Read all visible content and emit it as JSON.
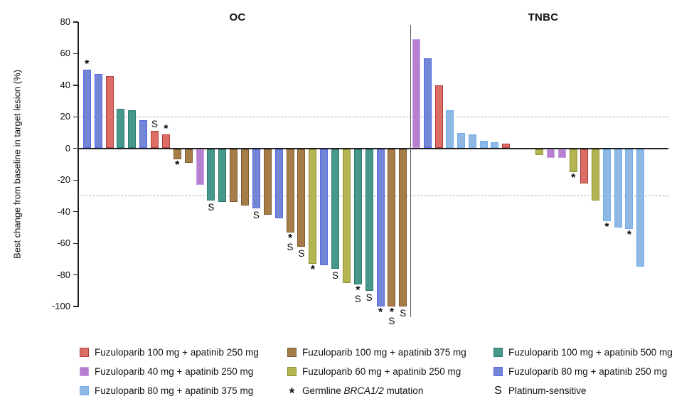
{
  "chart_data": {
    "type": "bar",
    "subtype": "waterfall",
    "ylabel": "Best change from baseline in target lesion (%)",
    "ylim": [
      -100,
      80
    ],
    "yticks": [
      80,
      60,
      40,
      20,
      0,
      -20,
      -40,
      -60,
      -80,
      -100
    ],
    "reference_lines_y": [
      20,
      -30
    ],
    "grid": false,
    "legend_position": "bottom",
    "groups": {
      "f100a250": {
        "label": "Fuzuloparib 100 mg + apatinib 250 mg",
        "fill": "#DC6E67",
        "border": "#B23E39"
      },
      "f100a375": {
        "label": "Fuzuloparib 100 mg + apatinib 375 mg",
        "fill": "#A67C49",
        "border": "#7E5B2F"
      },
      "f100a500": {
        "label": "Fuzuloparib 100 mg + apatinib 500 mg",
        "fill": "#47988C",
        "border": "#2E7A6D"
      },
      "f40a250": {
        "label": "Fuzuloparib 40 mg + apatinib 250 mg",
        "fill": "#B67FD0",
        "border": "#CBA2E6"
      },
      "f60a250": {
        "label": "Fuzuloparib 60 mg + apatinib 250 mg",
        "fill": "#B5B452",
        "border": "#90902E"
      },
      "f80a250": {
        "label": "Fuzuloparib 80 mg + apatinib 250 mg",
        "fill": "#7386D5",
        "border": "#5566E6"
      },
      "f80a375": {
        "label": "Fuzuloparib 80 mg + apatinib 375 mg",
        "fill": "#8FB9E4",
        "border": "#6FAFF0"
      }
    },
    "flag_meanings": {
      "star": "Germline BRCA1/2 mutation",
      "S": "Platinum-sensitive"
    },
    "panels": [
      {
        "title": "OC",
        "bars": [
          {
            "value": 50,
            "group": "f80a250",
            "flags": [
              "star"
            ]
          },
          {
            "value": 47,
            "group": "f80a250",
            "flags": []
          },
          {
            "value": 46,
            "group": "f100a250",
            "flags": []
          },
          {
            "value": 25,
            "group": "f100a500",
            "flags": []
          },
          {
            "value": 24,
            "group": "f100a500",
            "flags": []
          },
          {
            "value": 18,
            "group": "f80a250",
            "flags": []
          },
          {
            "value": 11,
            "group": "f100a250",
            "flags": [
              "S"
            ]
          },
          {
            "value": 9,
            "group": "f100a250",
            "flags": [
              "star"
            ]
          },
          {
            "value": -7,
            "group": "f100a375",
            "flags": [
              "star"
            ]
          },
          {
            "value": -9,
            "group": "f100a375",
            "flags": []
          },
          {
            "value": -23,
            "group": "f40a250",
            "flags": []
          },
          {
            "value": -33,
            "group": "f100a500",
            "flags": [
              "S"
            ]
          },
          {
            "value": -34,
            "group": "f100a500",
            "flags": []
          },
          {
            "value": -34,
            "group": "f100a375",
            "flags": []
          },
          {
            "value": -36,
            "group": "f100a375",
            "flags": []
          },
          {
            "value": -38,
            "group": "f80a250",
            "flags": [
              "S"
            ]
          },
          {
            "value": -42,
            "group": "f100a375",
            "flags": []
          },
          {
            "value": -44,
            "group": "f80a250",
            "flags": []
          },
          {
            "value": -53,
            "group": "f100a375",
            "flags": [
              "star",
              "S"
            ]
          },
          {
            "value": -62,
            "group": "f100a375",
            "flags": [
              "S"
            ]
          },
          {
            "value": -73,
            "group": "f60a250",
            "flags": [
              "star"
            ]
          },
          {
            "value": -74,
            "group": "f80a250",
            "flags": []
          },
          {
            "value": -76,
            "group": "f100a500",
            "flags": [
              "S"
            ]
          },
          {
            "value": -85,
            "group": "f60a250",
            "flags": []
          },
          {
            "value": -86,
            "group": "f100a500",
            "flags": [
              "star",
              "S"
            ]
          },
          {
            "value": -90,
            "group": "f100a500",
            "flags": [
              "S"
            ]
          },
          {
            "value": -100,
            "group": "f80a250",
            "flags": [
              "star"
            ]
          },
          {
            "value": -100,
            "group": "f100a375",
            "flags": [
              "star",
              "S"
            ]
          },
          {
            "value": -100,
            "group": "f100a375",
            "flags": [
              "S"
            ]
          }
        ]
      },
      {
        "title": "TNBC",
        "bars": [
          {
            "value": 69,
            "group": "f40a250",
            "slot": 0,
            "flags": []
          },
          {
            "value": 57,
            "group": "f80a250",
            "slot": 1,
            "flags": []
          },
          {
            "value": 40,
            "group": "f100a250",
            "slot": 2,
            "flags": []
          },
          {
            "value": 24,
            "group": "f80a375",
            "slot": 3,
            "flags": []
          },
          {
            "value": 10,
            "group": "f80a375",
            "slot": 4,
            "flags": []
          },
          {
            "value": 9,
            "group": "f80a375",
            "slot": 5,
            "flags": []
          },
          {
            "value": 5,
            "group": "f80a375",
            "slot": 6,
            "flags": []
          },
          {
            "value": 4,
            "group": "f80a375",
            "slot": 7,
            "flags": []
          },
          {
            "value": 3,
            "group": "f100a250",
            "slot": 8,
            "flags": []
          },
          {
            "value": -4,
            "group": "f60a250",
            "slot": 11,
            "flags": []
          },
          {
            "value": -6,
            "group": "f40a250",
            "slot": 12,
            "flags": []
          },
          {
            "value": -6,
            "group": "f40a250",
            "slot": 13,
            "flags": []
          },
          {
            "value": -15,
            "group": "f60a250",
            "slot": 14,
            "flags": [
              "star"
            ]
          },
          {
            "value": -22,
            "group": "f100a250",
            "slot": 15,
            "flags": []
          },
          {
            "value": -33,
            "group": "f60a250",
            "slot": 16,
            "flags": []
          },
          {
            "value": -46,
            "group": "f80a375",
            "slot": 17,
            "flags": [
              "star"
            ]
          },
          {
            "value": -50,
            "group": "f80a375",
            "slot": 18,
            "flags": []
          },
          {
            "value": -51,
            "group": "f80a375",
            "slot": 19,
            "flags": [
              "star"
            ]
          },
          {
            "value": -75,
            "group": "f80a375",
            "slot": 20,
            "flags": []
          }
        ]
      }
    ]
  },
  "legend": {
    "items": [
      {
        "type": "swatch",
        "group": "f100a250",
        "label": "Fuzuloparib 100 mg + apatinib 250 mg"
      },
      {
        "type": "swatch",
        "group": "f100a375",
        "label": "Fuzuloparib 100 mg + apatinib 375 mg"
      },
      {
        "type": "swatch",
        "group": "f100a500",
        "label": "Fuzuloparib 100 mg + apatinib 500 mg"
      },
      {
        "type": "swatch",
        "group": "f40a250",
        "label": "Fuzuloparib 40 mg + apatinib 250 mg"
      },
      {
        "type": "swatch",
        "group": "f60a250",
        "label": "Fuzuloparib 60 mg + apatinib 250 mg"
      },
      {
        "type": "swatch",
        "group": "f80a250",
        "label": "Fuzuloparib 80 mg + apatinib 250 mg"
      },
      {
        "type": "swatch",
        "group": "f80a375",
        "label": "Fuzuloparib 80 mg + apatinib 375 mg"
      },
      {
        "type": "symbol",
        "symbol": "*",
        "label_prefix": "Germline ",
        "label_italic": "BRCA1/2",
        "label_suffix": " mutation"
      },
      {
        "type": "symbol",
        "symbol": "S",
        "label": "Platinum-sensitive"
      }
    ]
  }
}
